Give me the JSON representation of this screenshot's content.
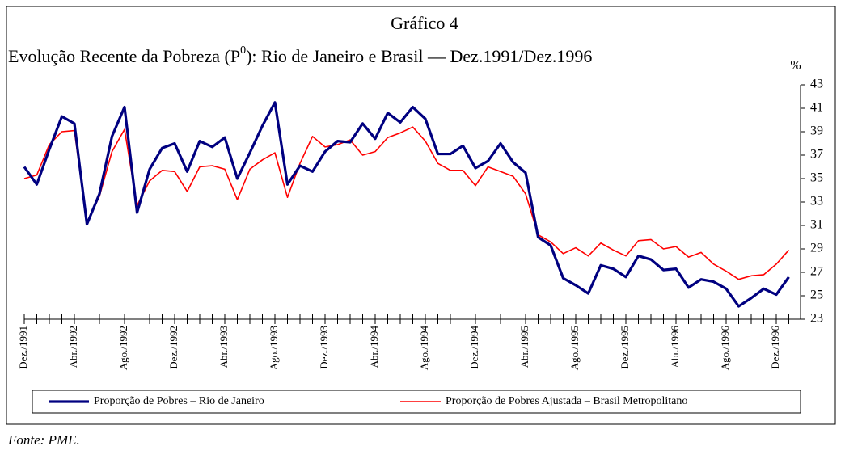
{
  "chart_data": {
    "type": "line",
    "title": "Gráfico 4",
    "subtitle": [
      "Evolução Recente da Pobreza (P",
      "0",
      "): Rio de Janeiro e Brasil — Dez.1991/Dez.1996"
    ],
    "y_label": "%",
    "source": "Fonte: PME.",
    "categories": [
      "Dez./1991",
      null,
      null,
      null,
      "Abr./1992",
      null,
      null,
      null,
      "Ago./1992",
      null,
      null,
      null,
      "Dez./1992",
      null,
      null,
      null,
      "Abr./1993",
      null,
      null,
      null,
      "Ago./1993",
      null,
      null,
      null,
      "Dez./1993",
      null,
      null,
      null,
      "Abr./1994",
      null,
      null,
      null,
      "Ago./1994",
      null,
      null,
      null,
      "Dez./1994",
      null,
      null,
      null,
      "Abr./1995",
      null,
      null,
      null,
      "Ago./1995",
      null,
      null,
      null,
      "Dez./1995",
      null,
      null,
      null,
      "Abr./1996",
      null,
      null,
      null,
      "Ago./1996",
      null,
      null,
      null,
      "Dez./1996",
      null
    ],
    "series": [
      {
        "name": "Proporção de Pobres – Rio de Janeiro",
        "color": "#000080",
        "values": [
          36.0,
          34.5,
          37.5,
          40.3,
          39.7,
          31.1,
          33.7,
          38.6,
          41.1,
          32.1,
          35.8,
          37.6,
          38.0,
          35.6,
          38.2,
          37.7,
          38.5,
          35.0,
          37.2,
          39.5,
          41.5,
          34.5,
          36.1,
          35.6,
          37.3,
          38.2,
          38.1,
          39.7,
          38.4,
          40.6,
          39.8,
          41.1,
          40.1,
          37.1,
          37.1,
          37.8,
          35.9,
          36.5,
          38.0,
          36.4,
          35.5,
          30.0,
          29.3,
          26.5,
          25.9,
          25.2,
          27.6,
          27.3,
          26.6,
          28.4,
          28.1,
          27.2,
          27.3,
          25.7,
          26.4,
          26.2,
          25.6,
          24.1,
          24.8,
          25.6,
          25.1,
          26.6
        ]
      },
      {
        "name": "Proporção de Pobres Ajustada – Brasil Metropolitano",
        "color": "#ff0000",
        "values": [
          35.0,
          35.3,
          37.9,
          39.0,
          39.1,
          31.2,
          33.5,
          37.3,
          39.2,
          32.7,
          34.8,
          35.7,
          35.6,
          33.9,
          36.0,
          36.1,
          35.8,
          33.2,
          35.8,
          36.6,
          37.2,
          33.4,
          36.3,
          38.6,
          37.7,
          37.9,
          38.3,
          37.0,
          37.3,
          38.5,
          38.9,
          39.4,
          38.2,
          36.3,
          35.7,
          35.7,
          34.4,
          36.0,
          35.6,
          35.2,
          33.7,
          30.2,
          29.6,
          28.6,
          29.1,
          28.4,
          29.5,
          28.9,
          28.4,
          29.7,
          29.8,
          29.0,
          29.2,
          28.3,
          28.7,
          27.7,
          27.1,
          26.4,
          26.7,
          26.8,
          27.7,
          28.9
        ]
      }
    ],
    "ylim": [
      23,
      43
    ],
    "yticks": [
      23,
      25,
      27,
      29,
      31,
      33,
      35,
      37,
      39,
      41,
      43
    ],
    "grid": false
  }
}
